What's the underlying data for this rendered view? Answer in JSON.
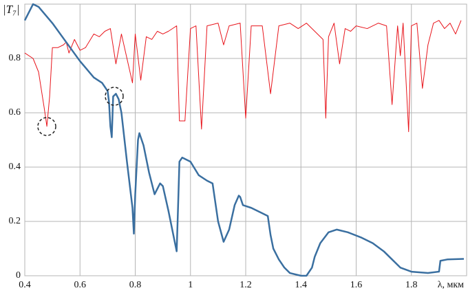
{
  "chart_data": {
    "type": "line",
    "ylabel": "|T₇|",
    "xlabel": "λ, мкм",
    "xlim": [
      0.4,
      2.0
    ],
    "ylim": [
      0,
      1.0
    ],
    "xticks": [
      0.4,
      0.6,
      0.8,
      1.0,
      1.2,
      1.4,
      1.6,
      1.8
    ],
    "yticks": [
      0,
      0.2,
      0.4,
      0.6,
      0.8
    ],
    "grid": true,
    "series": [
      {
        "color": "#e8141b",
        "width": 1,
        "x": [
          0.4,
          0.43,
          0.45,
          0.47,
          0.48,
          0.49,
          0.5,
          0.52,
          0.54,
          0.55,
          0.56,
          0.58,
          0.6,
          0.62,
          0.65,
          0.67,
          0.69,
          0.71,
          0.73,
          0.75,
          0.77,
          0.79,
          0.8,
          0.82,
          0.84,
          0.86,
          0.88,
          0.9,
          0.92,
          0.95,
          0.96,
          0.98,
          1.0,
          1.02,
          1.04,
          1.06,
          1.1,
          1.12,
          1.14,
          1.18,
          1.2,
          1.22,
          1.26,
          1.29,
          1.32,
          1.36,
          1.39,
          1.42,
          1.45,
          1.48,
          1.49,
          1.5,
          1.52,
          1.54,
          1.56,
          1.58,
          1.6,
          1.64,
          1.68,
          1.71,
          1.73,
          1.75,
          1.76,
          1.77,
          1.79,
          1.8,
          1.82,
          1.84,
          1.86,
          1.88,
          1.9,
          1.92,
          1.94,
          1.96,
          1.98
        ],
        "values": [
          0.82,
          0.8,
          0.75,
          0.62,
          0.55,
          0.66,
          0.84,
          0.84,
          0.85,
          0.86,
          0.82,
          0.87,
          0.83,
          0.84,
          0.89,
          0.88,
          0.9,
          0.91,
          0.78,
          0.89,
          0.8,
          0.71,
          0.89,
          0.72,
          0.88,
          0.87,
          0.9,
          0.89,
          0.9,
          0.92,
          0.57,
          0.57,
          0.91,
          0.92,
          0.54,
          0.92,
          0.93,
          0.85,
          0.92,
          0.93,
          0.58,
          0.92,
          0.92,
          0.67,
          0.92,
          0.93,
          0.91,
          0.93,
          0.9,
          0.87,
          0.58,
          0.88,
          0.93,
          0.78,
          0.91,
          0.9,
          0.92,
          0.91,
          0.93,
          0.92,
          0.63,
          0.92,
          0.81,
          0.93,
          0.53,
          0.92,
          0.93,
          0.69,
          0.85,
          0.93,
          0.94,
          0.91,
          0.93,
          0.89,
          0.94
        ]
      },
      {
        "color": "#3a6fa0",
        "width": 2.5,
        "x": [
          0.4,
          0.43,
          0.45,
          0.5,
          0.55,
          0.6,
          0.65,
          0.68,
          0.7,
          0.705,
          0.71,
          0.715,
          0.72,
          0.73,
          0.74,
          0.75,
          0.77,
          0.79,
          0.795,
          0.8,
          0.81,
          0.815,
          0.83,
          0.85,
          0.87,
          0.89,
          0.9,
          0.92,
          0.94,
          0.95,
          0.955,
          0.96,
          0.97,
          1.0,
          1.03,
          1.06,
          1.08,
          1.1,
          1.12,
          1.14,
          1.16,
          1.175,
          1.18,
          1.19,
          1.22,
          1.26,
          1.28,
          1.29,
          1.3,
          1.32,
          1.34,
          1.36,
          1.4,
          1.42,
          1.44,
          1.45,
          1.47,
          1.5,
          1.53,
          1.57,
          1.62,
          1.66,
          1.7,
          1.73,
          1.76,
          1.8,
          1.86,
          1.9,
          1.905,
          1.93,
          1.99
        ],
        "values": [
          0.94,
          1.0,
          0.99,
          0.93,
          0.86,
          0.79,
          0.73,
          0.71,
          0.68,
          0.64,
          0.55,
          0.51,
          0.66,
          0.67,
          0.65,
          0.6,
          0.42,
          0.25,
          0.155,
          0.3,
          0.5,
          0.525,
          0.48,
          0.38,
          0.3,
          0.34,
          0.33,
          0.24,
          0.14,
          0.09,
          0.25,
          0.42,
          0.435,
          0.42,
          0.37,
          0.35,
          0.34,
          0.2,
          0.125,
          0.17,
          0.26,
          0.295,
          0.29,
          0.26,
          0.25,
          0.23,
          0.22,
          0.15,
          0.1,
          0.06,
          0.03,
          0.01,
          0.0,
          0.0,
          0.03,
          0.07,
          0.12,
          0.16,
          0.17,
          0.16,
          0.14,
          0.12,
          0.09,
          0.06,
          0.03,
          0.015,
          0.01,
          0.015,
          0.055,
          0.06,
          0.062
        ]
      }
    ]
  }
}
